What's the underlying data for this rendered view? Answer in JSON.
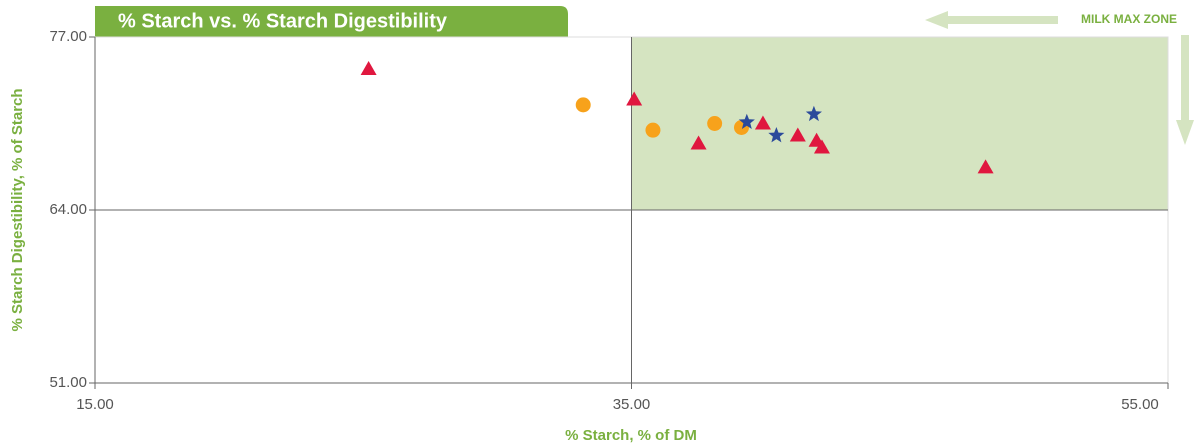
{
  "chart_data": {
    "type": "scatter",
    "title": "% Starch vs. % Starch Digestibility",
    "xlabel": "% Starch, % of DM",
    "ylabel": "% Starch Digestibility, % of Starch",
    "annotation": "MILK MAX ZONE",
    "xlim": [
      15,
      55
    ],
    "ylim": [
      51,
      77
    ],
    "xticks": [
      {
        "value": 15,
        "label": "15.00"
      },
      {
        "value": 35,
        "label": "35.00"
      },
      {
        "value": 55,
        "label": "55.00"
      }
    ],
    "yticks": [
      {
        "value": 51,
        "label": "51.00"
      },
      {
        "value": 64,
        "label": "64.00"
      },
      {
        "value": 77,
        "label": "77.00"
      }
    ],
    "reference_lines": {
      "x": 35,
      "y": 64
    },
    "zone_color": "#d5e4c1",
    "series": [
      {
        "marker": "triangle",
        "color": "#e0173f",
        "x": [
          25.2,
          35.1,
          37.5,
          39.9,
          41.2,
          41.9,
          42.1,
          48.2
        ],
        "values": [
          74.6,
          72.3,
          69.0,
          70.5,
          69.6,
          69.2,
          68.7,
          67.2
        ]
      },
      {
        "marker": "circle",
        "color": "#f7a21b",
        "x": [
          33.2,
          35.8,
          38.1,
          39.1
        ],
        "values": [
          71.9,
          70.0,
          70.5,
          70.2
        ]
      },
      {
        "marker": "star",
        "color": "#2b4a9b",
        "x": [
          39.3,
          40.4,
          41.8
        ],
        "values": [
          70.6,
          69.6,
          71.2
        ]
      }
    ]
  }
}
